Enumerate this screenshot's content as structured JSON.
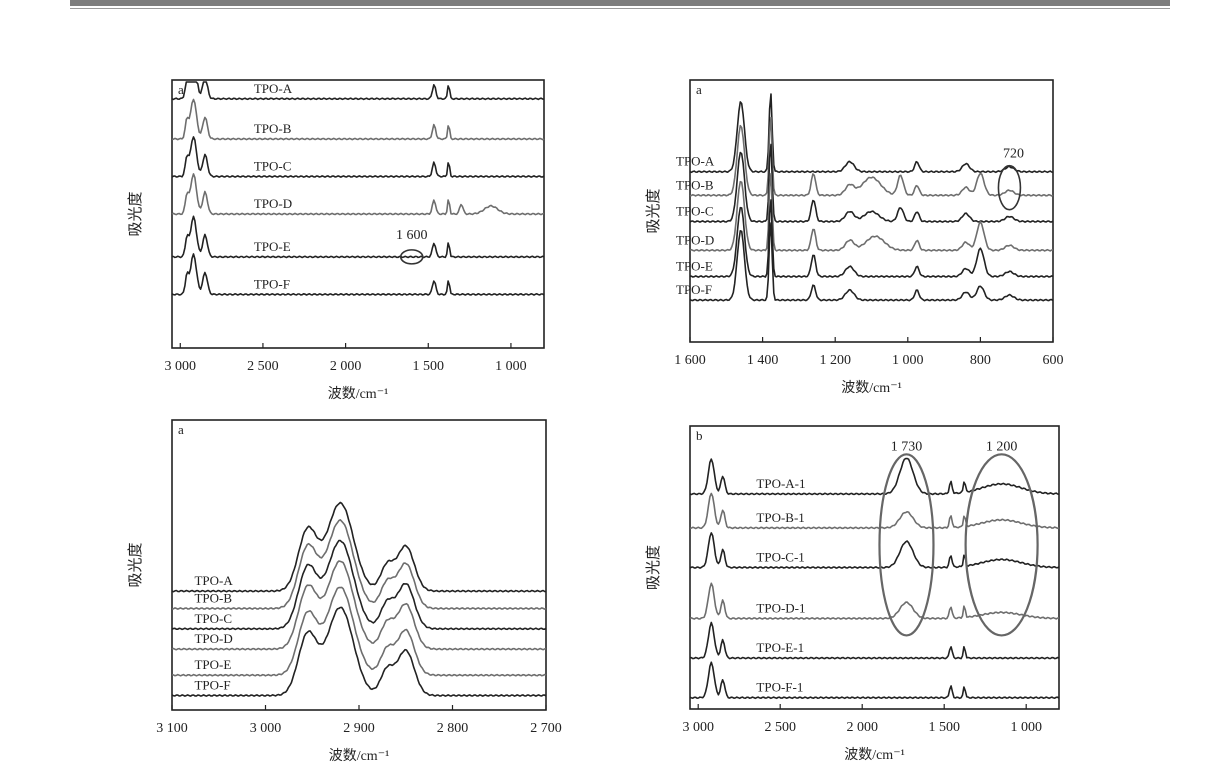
{
  "colors": {
    "dark_line": "#222222",
    "light_line": "#6e6e6e",
    "background": "#ffffff",
    "header_rule": "#7d7d7d"
  },
  "chart_data": [
    {
      "type": "line",
      "panel_label": "a",
      "xlabel": "波数/cm⁻¹",
      "ylabel": "吸光度",
      "xlim": [
        3050,
        800
      ],
      "x_reversed": true,
      "x_ticks": [
        3000,
        2500,
        2000,
        1500,
        1000
      ],
      "x_tick_labels": [
        "3 000",
        "2 500",
        "2 000",
        "1 500",
        "1 000"
      ],
      "y_ticks_shown": false,
      "series": [
        {
          "name": "TPO-A",
          "baseline": 0.07
        },
        {
          "name": "TPO-B",
          "baseline": 0.22
        },
        {
          "name": "TPO-C",
          "baseline": 0.36
        },
        {
          "name": "TPO-D",
          "baseline": 0.5
        },
        {
          "name": "TPO-E",
          "baseline": 0.66
        },
        {
          "name": "TPO-F",
          "baseline": 0.8
        }
      ],
      "annotations": [
        {
          "text": "1 600",
          "x": 1600,
          "series": "TPO-E",
          "shape": "ellipse"
        }
      ]
    },
    {
      "type": "line",
      "panel_label": "a",
      "xlabel": "波数/cm⁻¹",
      "ylabel": "吸光度",
      "xlim": [
        1600,
        600
      ],
      "x_reversed": true,
      "x_ticks": [
        1600,
        1400,
        1200,
        1000,
        800,
        600
      ],
      "x_tick_labels": [
        "1 600",
        "1 400",
        "1 200",
        "1 000",
        "800",
        "600"
      ],
      "y_ticks_shown": false,
      "series": [
        {
          "name": "TPO-A",
          "baseline": 0.35
        },
        {
          "name": "TPO-B",
          "baseline": 0.44
        },
        {
          "name": "TPO-C",
          "baseline": 0.54
        },
        {
          "name": "TPO-D",
          "baseline": 0.65
        },
        {
          "name": "TPO-E",
          "baseline": 0.75
        },
        {
          "name": "TPO-F",
          "baseline": 0.84
        }
      ],
      "annotations": [
        {
          "text": "720",
          "x": 720,
          "series": "TPO-A",
          "shape": "ellipse"
        }
      ]
    },
    {
      "type": "line",
      "panel_label": "a",
      "xlabel": "波数/cm⁻¹",
      "ylabel": "吸光度",
      "xlim": [
        3100,
        2700
      ],
      "x_reversed": true,
      "x_ticks": [
        3100,
        3000,
        2900,
        2800,
        2700
      ],
      "x_tick_labels": [
        "3 100",
        "3 000",
        "2 900",
        "2 800",
        "2 700"
      ],
      "y_ticks_shown": false,
      "series": [
        {
          "name": "TPO-A",
          "baseline": 0.59
        },
        {
          "name": "TPO-B",
          "baseline": 0.65
        },
        {
          "name": "TPO-C",
          "baseline": 0.72
        },
        {
          "name": "TPO-D",
          "baseline": 0.79
        },
        {
          "name": "TPO-E",
          "baseline": 0.88
        },
        {
          "name": "TPO-F",
          "baseline": 0.95
        }
      ],
      "annotations": []
    },
    {
      "type": "line",
      "panel_label": "b",
      "xlabel": "波数/cm⁻¹",
      "ylabel": "吸光度",
      "xlim": [
        3050,
        800
      ],
      "x_reversed": true,
      "x_ticks": [
        3000,
        2500,
        2000,
        1500,
        1000
      ],
      "x_tick_labels": [
        "3 000",
        "2 500",
        "2 000",
        "1 500",
        "1 000"
      ],
      "y_ticks_shown": false,
      "series": [
        {
          "name": "TPO-A-1",
          "baseline": 0.24
        },
        {
          "name": "TPO-B-1",
          "baseline": 0.36
        },
        {
          "name": "TPO-C-1",
          "baseline": 0.5
        },
        {
          "name": "TPO-D-1",
          "baseline": 0.68
        },
        {
          "name": "TPO-E-1",
          "baseline": 0.82
        },
        {
          "name": "TPO-F-1",
          "baseline": 0.96
        }
      ],
      "annotations": [
        {
          "text": "1 730",
          "x": 1730,
          "series": "TPO-A-1",
          "shape": "ellipse"
        },
        {
          "text": "1 200",
          "x": 1150,
          "series": "TPO-A-1",
          "shape": "ellipse"
        }
      ]
    }
  ]
}
